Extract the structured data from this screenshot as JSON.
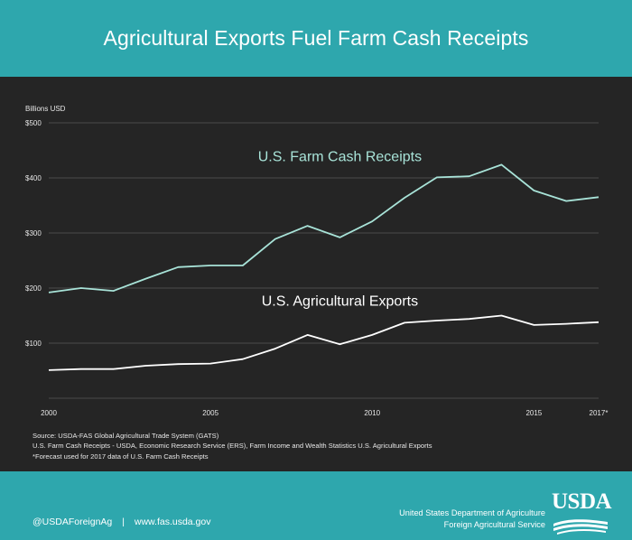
{
  "header": {
    "title": "Agricultural Exports Fuel Farm Cash Receipts"
  },
  "chart_data": {
    "type": "line",
    "ylabel": "Billions USD",
    "ylim": [
      0,
      500
    ],
    "y_ticks": [
      100,
      200,
      300,
      400,
      500
    ],
    "y_tick_labels": [
      "$100",
      "$200",
      "$300",
      "$400",
      "$500"
    ],
    "xlim": [
      2000,
      2017
    ],
    "x_tick_labels": [
      {
        "x": 2000,
        "label": "2000"
      },
      {
        "x": 2005,
        "label": "2005"
      },
      {
        "x": 2010,
        "label": "2010"
      },
      {
        "x": 2015,
        "label": "2015"
      },
      {
        "x": 2017,
        "label": "2017*"
      }
    ],
    "grid": true,
    "x": [
      2000,
      2001,
      2002,
      2003,
      2004,
      2005,
      2006,
      2007,
      2008,
      2009,
      2010,
      2011,
      2012,
      2013,
      2014,
      2015,
      2016,
      2017
    ],
    "series": [
      {
        "name": "U.S. Farm Cash Receipts",
        "color": "#a8e3d8",
        "label_x": 2009,
        "label_y": 430,
        "values": [
          192,
          200,
          195,
          217,
          238,
          241,
          241,
          289,
          313,
          292,
          321,
          364,
          401,
          403,
          424,
          377,
          358,
          365
        ]
      },
      {
        "name": "U.S. Agricultural Exports",
        "color": "#ffffff",
        "label_x": 2009,
        "label_y": 168,
        "values": [
          51,
          53,
          53,
          59,
          62,
          63,
          71,
          90,
          115,
          98,
          115,
          137,
          141,
          144,
          150,
          133,
          135,
          138
        ]
      }
    ]
  },
  "sources": [
    "Source: USDA-FAS Global Agricultural Trade System (GATS)",
    "U.S. Farm Cash Receipts - USDA, Economic Research Service (ERS), Farm Income and Wealth Statistics U.S. Agricultural Exports",
    "*Forecast used for 2017 data of  U.S. Farm Cash Receipts"
  ],
  "footer": {
    "twitter": "@USDAForeignAg",
    "separator": "|",
    "website": "www.fas.usda.gov",
    "agency_line1": "United States Department of Agriculture",
    "agency_line2": "Foreign Agricultural Service",
    "logo_text": "USDA"
  },
  "colors": {
    "teal": "#2ea7ad",
    "background": "#252525",
    "grid": "#5a5a5a"
  }
}
